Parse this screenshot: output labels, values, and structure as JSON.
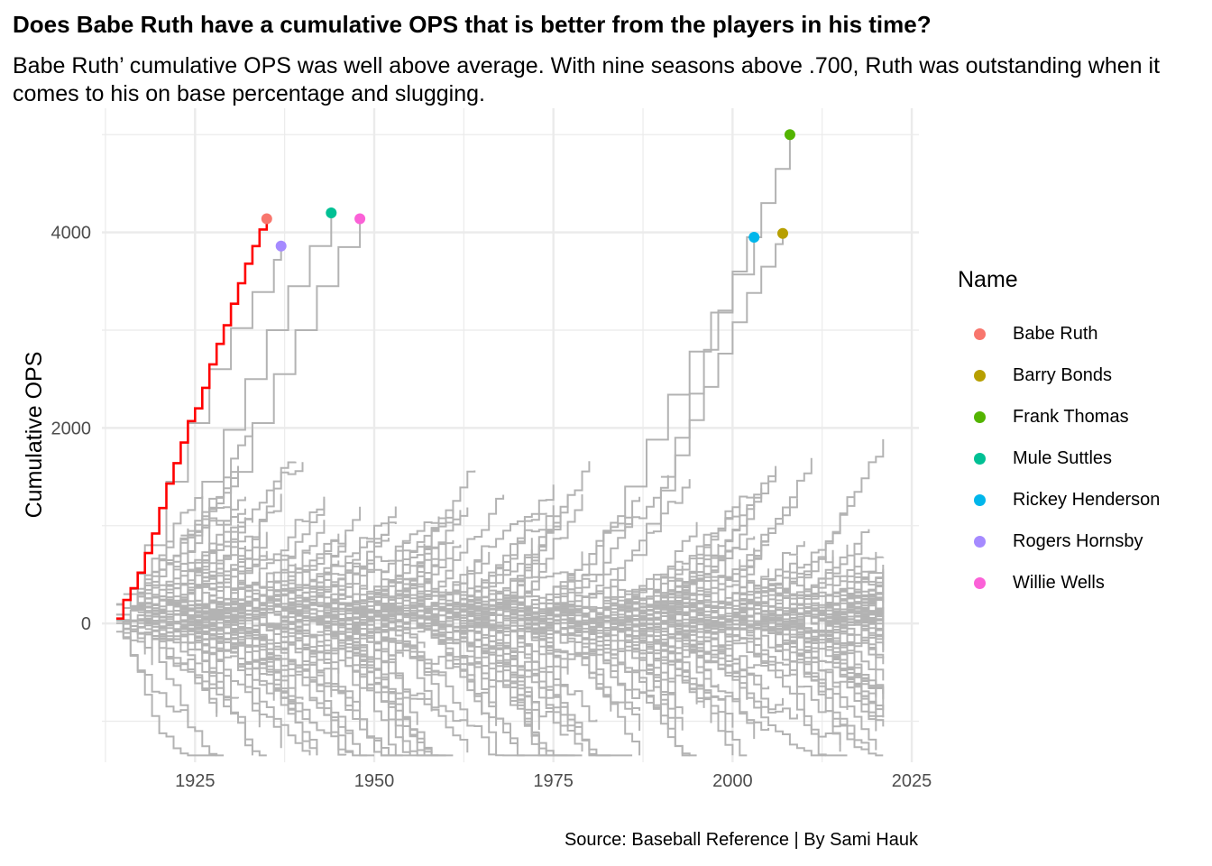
{
  "chart_data": {
    "type": "line",
    "title": "Does Babe Ruth have a cumulative OPS that is better from the players in his time?",
    "subtitle": "Babe Ruth’ cumulative OPS was well above average. With nine seasons above .700, Ruth was outstanding when it comes to his on base percentage and slugging.",
    "caption": "Source: Baseball Reference | By Sami Hauk",
    "xlabel": "",
    "ylabel": "Cumulative OPS",
    "xlim": [
      1912,
      2026
    ],
    "ylim": [
      -1420,
      5270
    ],
    "x_ticks": [
      "1925",
      "1950",
      "1975",
      "2000",
      "2025"
    ],
    "x_tick_values": [
      1925,
      1950,
      1975,
      2000,
      2025
    ],
    "y_ticks": [
      "0",
      "2000",
      "4000"
    ],
    "y_tick_values": [
      0,
      2000,
      4000
    ],
    "grid": true,
    "legend_title": "Name",
    "legend_position": "right",
    "background_series_color": "#b3b3b3",
    "highlight_series_color": "#ff0000",
    "series": [
      {
        "name": "Babe Ruth",
        "color": "#F8766D",
        "highlight": true,
        "x": [
          1914,
          1915,
          1916,
          1917,
          1918,
          1919,
          1920,
          1921,
          1922,
          1923,
          1924,
          1925,
          1926,
          1927,
          1928,
          1929,
          1930,
          1931,
          1932,
          1933,
          1934,
          1935
        ],
        "y": [
          50,
          240,
          360,
          520,
          720,
          920,
          1180,
          1430,
          1640,
          1850,
          2070,
          2200,
          2410,
          2650,
          2860,
          3050,
          3270,
          3480,
          3680,
          3860,
          4030,
          4140
        ]
      },
      {
        "name": "Barry Bonds",
        "color": "#B79F00",
        "x": [
          1986,
          1988,
          1990,
          1992,
          1994,
          1996,
          1998,
          2000,
          2002,
          2004,
          2006,
          2007
        ],
        "y": [
          700,
          1020,
          1360,
          1720,
          2080,
          2420,
          2760,
          3080,
          3380,
          3650,
          3880,
          3990
        ]
      },
      {
        "name": "Frank Thomas",
        "color": "#53B400",
        "x": [
          1990,
          1992,
          1994,
          1996,
          1998,
          2000,
          2002,
          2004,
          2006,
          2008
        ],
        "y": [
          1500,
          1900,
          2350,
          2800,
          3200,
          3600,
          3950,
          4300,
          4650,
          5000
        ]
      },
      {
        "name": "Mule Suttles",
        "color": "#00C094",
        "x": [
          1923,
          1926,
          1929,
          1932,
          1935,
          1938,
          1941,
          1944
        ],
        "y": [
          900,
          1450,
          1980,
          2500,
          3000,
          3450,
          3860,
          4200
        ]
      },
      {
        "name": "Rickey Henderson",
        "color": "#00B6EB",
        "x": [
          1979,
          1982,
          1985,
          1988,
          1991,
          1994,
          1997,
          2000,
          2003
        ],
        "y": [
          500,
          950,
          1400,
          1880,
          2340,
          2780,
          3180,
          3570,
          3950
        ]
      },
      {
        "name": "Rogers Hornsby",
        "color": "#A58AFF",
        "x": [
          1915,
          1918,
          1921,
          1924,
          1927,
          1930,
          1933,
          1936,
          1937
        ],
        "y": [
          300,
          800,
          1450,
          2050,
          2600,
          3020,
          3390,
          3720,
          3860
        ]
      },
      {
        "name": "Willie Wells",
        "color": "#FB61D7",
        "x": [
          1924,
          1927,
          1930,
          1933,
          1936,
          1939,
          1942,
          1945,
          1948
        ],
        "y": [
          550,
          1050,
          1550,
          2050,
          2550,
          3000,
          3450,
          3850,
          4140
        ]
      }
    ]
  }
}
